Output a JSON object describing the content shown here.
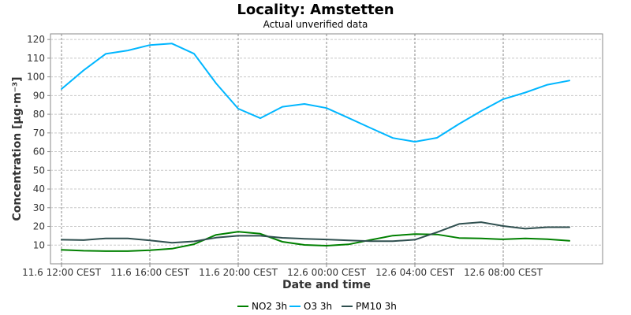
{
  "chart_data": {
    "type": "line",
    "title": "Locality: Amstetten",
    "subtitle": "Actual unverified data",
    "xlabel": "Date and time",
    "ylabel": "Concentration [µg·m⁻³]",
    "ylim": [
      0,
      123
    ],
    "yticks": [
      10,
      20,
      30,
      40,
      50,
      60,
      70,
      80,
      90,
      100,
      110,
      120
    ],
    "x_hours_range": [
      -0.5,
      24.5
    ],
    "x": [
      "11.6 12:00",
      "11.6 13:00",
      "11.6 14:00",
      "11.6 15:00",
      "11.6 16:00",
      "11.6 17:00",
      "11.6 18:00",
      "11.6 19:00",
      "11.6 20:00",
      "11.6 21:00",
      "11.6 22:00",
      "11.6 23:00",
      "12.6 00:00",
      "12.6 01:00",
      "12.6 02:00",
      "12.6 03:00",
      "12.6 04:00",
      "12.6 05:00",
      "12.6 06:00",
      "12.6 07:00",
      "12.6 08:00",
      "12.6 09:00",
      "12.6 10:00",
      "12.6 11:00"
    ],
    "xtick_labels": [
      {
        "label": "11.6 12:00 CEST",
        "hour": 0
      },
      {
        "label": "11.6 16:00 CEST",
        "hour": 4
      },
      {
        "label": "11.6 20:00 CEST",
        "hour": 8
      },
      {
        "label": "12.6 00:00 CEST",
        "hour": 12
      },
      {
        "label": "12.6 04:00 CEST",
        "hour": 16
      },
      {
        "label": "12.6 08:00 CEST",
        "hour": 20
      }
    ],
    "grid": true,
    "legend_position": "bottom",
    "series": [
      {
        "name": "NO2 3h",
        "color": "#008000",
        "values": [
          7.5,
          7,
          6.8,
          6.8,
          7.3,
          8.1,
          10.5,
          15.5,
          17.2,
          16.1,
          11.8,
          10.1,
          9.7,
          10.4,
          12.8,
          15.1,
          15.9,
          15.7,
          13.8,
          13.6,
          13.1,
          13.6,
          13.2,
          12.3
        ]
      },
      {
        "name": "O3 3h",
        "color": "#00b6ff",
        "values": [
          93.5,
          103.5,
          112.3,
          114.1,
          117,
          117.8,
          112.4,
          96.5,
          83,
          77.9,
          84,
          85.5,
          83.3,
          78,
          72.6,
          67.3,
          65.3,
          67.4,
          74.8,
          81.7,
          88.1,
          91.6,
          95.8,
          98
        ]
      },
      {
        "name": "PM10 3h",
        "color": "#2f4f4f",
        "values": [
          12.9,
          12.7,
          13.6,
          13.6,
          12.5,
          11.3,
          12,
          14,
          15,
          15,
          13.9,
          13.4,
          13,
          12.5,
          12.1,
          12.1,
          12.9,
          16.9,
          21.3,
          22.3,
          20.2,
          18.8,
          19.6,
          19.6
        ]
      }
    ]
  }
}
